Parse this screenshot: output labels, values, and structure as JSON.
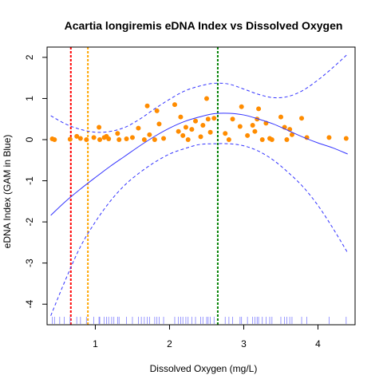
{
  "chart_data": {
    "type": "scatter",
    "title": "Acartia longiremis eDNA Index vs Dissolved Oxygen",
    "xlabel": "Dissolved Oxygen (mg/L)",
    "ylabel": "eDNA Index (GAM in Blue)",
    "xlim": [
      0.35,
      4.5
    ],
    "ylim": [
      -4.5,
      2.25
    ],
    "xticks": [
      "1",
      "2",
      "3",
      "4"
    ],
    "xtick_values": [
      1,
      2,
      3,
      4
    ],
    "yticks": [
      "2",
      "1",
      "0",
      "-1",
      "-2",
      "-3",
      "-4"
    ],
    "ytick_values": [
      2,
      1,
      0,
      -1,
      -2,
      -3,
      -4
    ],
    "points_color": "#FF8C00",
    "points": [
      [
        0.42,
        0.02
      ],
      [
        0.45,
        0.0
      ],
      [
        0.66,
        0.01
      ],
      [
        0.75,
        0.08
      ],
      [
        0.8,
        0.03
      ],
      [
        0.88,
        0.0
      ],
      [
        0.98,
        0.05
      ],
      [
        1.05,
        0.3
      ],
      [
        1.06,
        0.0
      ],
      [
        1.12,
        0.05
      ],
      [
        1.15,
        0.08
      ],
      [
        1.18,
        0.02
      ],
      [
        1.3,
        0.15
      ],
      [
        1.32,
        0.0
      ],
      [
        1.42,
        0.02
      ],
      [
        1.5,
        0.05
      ],
      [
        1.58,
        0.28
      ],
      [
        1.66,
        0.0
      ],
      [
        1.7,
        0.82
      ],
      [
        1.73,
        0.12
      ],
      [
        1.8,
        0.0
      ],
      [
        1.83,
        0.7
      ],
      [
        1.86,
        0.38
      ],
      [
        1.92,
        0.03
      ],
      [
        2.07,
        0.85
      ],
      [
        2.12,
        0.2
      ],
      [
        2.15,
        0.55
      ],
      [
        2.18,
        0.1
      ],
      [
        2.22,
        0.3
      ],
      [
        2.25,
        0.0
      ],
      [
        2.3,
        0.25
      ],
      [
        2.35,
        0.45
      ],
      [
        2.42,
        0.07
      ],
      [
        2.45,
        0.35
      ],
      [
        2.5,
        1.0
      ],
      [
        2.52,
        0.5
      ],
      [
        2.55,
        0.18
      ],
      [
        2.6,
        0.52
      ],
      [
        2.75,
        0.15
      ],
      [
        2.8,
        0.0
      ],
      [
        2.85,
        0.5
      ],
      [
        2.95,
        0.32
      ],
      [
        2.97,
        0.8
      ],
      [
        3.05,
        0.1
      ],
      [
        3.12,
        0.35
      ],
      [
        3.15,
        0.2
      ],
      [
        3.18,
        0.5
      ],
      [
        3.2,
        0.75
      ],
      [
        3.25,
        0.0
      ],
      [
        3.3,
        0.4
      ],
      [
        3.35,
        0.03
      ],
      [
        3.38,
        0.0
      ],
      [
        3.5,
        0.55
      ],
      [
        3.55,
        0.3
      ],
      [
        3.58,
        0.0
      ],
      [
        3.62,
        0.25
      ],
      [
        3.65,
        0.12
      ],
      [
        3.78,
        0.52
      ],
      [
        3.85,
        0.05
      ],
      [
        4.15,
        0.05
      ],
      [
        4.38,
        0.03
      ]
    ],
    "gam_color": "#3333FF",
    "gam_fit": [
      [
        0.4,
        -1.84
      ],
      [
        0.6,
        -1.5
      ],
      [
        0.8,
        -1.2
      ],
      [
        1.0,
        -0.92
      ],
      [
        1.2,
        -0.65
      ],
      [
        1.4,
        -0.4
      ],
      [
        1.6,
        -0.15
      ],
      [
        1.8,
        0.08
      ],
      [
        2.0,
        0.28
      ],
      [
        2.2,
        0.44
      ],
      [
        2.4,
        0.55
      ],
      [
        2.6,
        0.63
      ],
      [
        2.8,
        0.64
      ],
      [
        3.0,
        0.6
      ],
      [
        3.2,
        0.5
      ],
      [
        3.4,
        0.38
      ],
      [
        3.6,
        0.22
      ],
      [
        3.8,
        0.06
      ],
      [
        4.0,
        -0.08
      ],
      [
        4.2,
        -0.2
      ],
      [
        4.4,
        -0.35
      ]
    ],
    "ci_upper": [
      [
        0.4,
        0.58
      ],
      [
        0.6,
        0.38
      ],
      [
        0.8,
        0.25
      ],
      [
        1.0,
        0.18
      ],
      [
        1.2,
        0.2
      ],
      [
        1.4,
        0.3
      ],
      [
        1.6,
        0.5
      ],
      [
        1.8,
        0.75
      ],
      [
        2.0,
        0.98
      ],
      [
        2.2,
        1.18
      ],
      [
        2.4,
        1.3
      ],
      [
        2.6,
        1.37
      ],
      [
        2.8,
        1.35
      ],
      [
        3.0,
        1.23
      ],
      [
        3.2,
        1.1
      ],
      [
        3.4,
        1.02
      ],
      [
        3.6,
        1.05
      ],
      [
        3.8,
        1.2
      ],
      [
        4.0,
        1.45
      ],
      [
        4.2,
        1.75
      ],
      [
        4.4,
        2.08
      ]
    ],
    "ci_lower": [
      [
        0.4,
        -4.28
      ],
      [
        0.6,
        -3.4
      ],
      [
        0.8,
        -2.6
      ],
      [
        1.0,
        -2.0
      ],
      [
        1.2,
        -1.5
      ],
      [
        1.4,
        -1.1
      ],
      [
        1.6,
        -0.8
      ],
      [
        1.8,
        -0.55
      ],
      [
        2.0,
        -0.35
      ],
      [
        2.2,
        -0.22
      ],
      [
        2.4,
        -0.12
      ],
      [
        2.6,
        -0.1
      ],
      [
        2.8,
        -0.1
      ],
      [
        3.0,
        -0.15
      ],
      [
        3.2,
        -0.28
      ],
      [
        3.4,
        -0.5
      ],
      [
        3.6,
        -0.8
      ],
      [
        3.8,
        -1.15
      ],
      [
        4.0,
        -1.6
      ],
      [
        4.2,
        -2.15
      ],
      [
        4.4,
        -2.75
      ]
    ],
    "vlines": [
      {
        "x": 0.67,
        "color": "#FF0000"
      },
      {
        "x": 0.9,
        "color": "#FFA500"
      },
      {
        "x": 2.65,
        "color": "#008000"
      }
    ],
    "rug_color": "#8080FF",
    "rug": [
      0.42,
      0.45,
      0.52,
      0.58,
      0.66,
      0.75,
      0.8,
      0.88,
      0.98,
      1.05,
      1.06,
      1.12,
      1.15,
      1.18,
      1.22,
      1.25,
      1.3,
      1.32,
      1.42,
      1.5,
      1.58,
      1.62,
      1.66,
      1.7,
      1.73,
      1.8,
      1.83,
      1.86,
      1.92,
      2.07,
      2.12,
      2.15,
      2.18,
      2.22,
      2.25,
      2.3,
      2.35,
      2.42,
      2.45,
      2.5,
      2.52,
      2.55,
      2.6,
      2.75,
      2.8,
      2.85,
      2.95,
      2.97,
      3.05,
      3.12,
      3.15,
      3.18,
      3.2,
      3.25,
      3.3,
      3.35,
      3.38,
      3.5,
      3.55,
      3.58,
      3.62,
      3.65,
      3.78,
      3.85,
      4.15,
      4.38
    ]
  }
}
